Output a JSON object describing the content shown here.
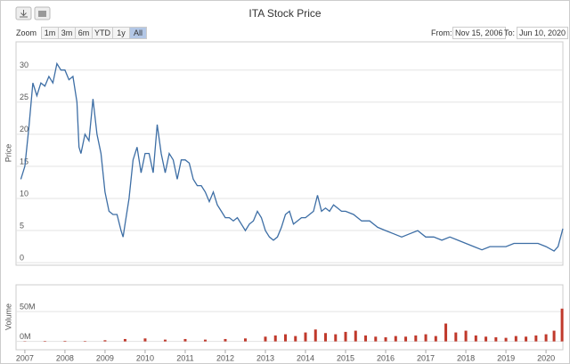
{
  "toolbar": {
    "zoom_label": "Zoom",
    "buttons": [
      "1m",
      "3m",
      "6m",
      "YTD",
      "1y",
      "All"
    ],
    "from_label": "From:",
    "from": "Nov 15, 2006",
    "to_label": "To:",
    "to": "Jun 10, 2020"
  },
  "chart_data": [
    {
      "type": "line",
      "title": "ITA Stock Price",
      "y_label": "Price",
      "x": [
        2006.9,
        2007.0,
        2007.1,
        2007.2,
        2007.3,
        2007.4,
        2007.5,
        2007.6,
        2007.7,
        2007.8,
        2007.9,
        2008.0,
        2008.1,
        2008.2,
        2008.3,
        2008.35,
        2008.4,
        2008.5,
        2008.6,
        2008.7,
        2008.8,
        2008.9,
        2009.0,
        2009.1,
        2009.2,
        2009.3,
        2009.4,
        2009.45,
        2009.5,
        2009.6,
        2009.7,
        2009.8,
        2009.9,
        2010.0,
        2010.1,
        2010.2,
        2010.3,
        2010.4,
        2010.5,
        2010.6,
        2010.7,
        2010.8,
        2010.9,
        2011.0,
        2011.1,
        2011.2,
        2011.3,
        2011.4,
        2011.5,
        2011.6,
        2011.7,
        2011.8,
        2011.9,
        2012.0,
        2012.1,
        2012.2,
        2012.3,
        2012.4,
        2012.5,
        2012.6,
        2012.7,
        2012.8,
        2012.9,
        2013.0,
        2013.1,
        2013.2,
        2013.3,
        2013.4,
        2013.5,
        2013.6,
        2013.7,
        2013.8,
        2013.9,
        2014.0,
        2014.1,
        2014.2,
        2014.3,
        2014.4,
        2014.5,
        2014.6,
        2014.7,
        2014.8,
        2014.9,
        2015.0,
        2015.2,
        2015.4,
        2015.6,
        2015.8,
        2016.0,
        2016.2,
        2016.4,
        2016.6,
        2016.8,
        2017.0,
        2017.2,
        2017.4,
        2017.6,
        2017.8,
        2018.0,
        2018.2,
        2018.4,
        2018.6,
        2018.8,
        2019.0,
        2019.2,
        2019.4,
        2019.6,
        2019.8,
        2020.0,
        2020.2,
        2020.3,
        2020.42
      ],
      "series": [
        {
          "name": "ITA",
          "color": "#3d6ea5",
          "values": [
            13,
            15,
            21,
            28,
            26,
            28,
            27.5,
            29,
            28,
            31,
            30,
            30,
            28.5,
            29,
            25,
            18,
            17,
            20,
            19,
            25.5,
            20,
            17,
            11,
            8,
            7.5,
            7.5,
            5,
            4,
            6,
            10,
            16,
            18,
            14,
            17,
            17,
            14,
            21.5,
            17,
            14,
            17,
            16,
            13,
            16,
            16,
            15.5,
            13,
            12,
            12,
            11,
            9.5,
            11,
            9,
            8,
            7,
            7,
            6.5,
            7,
            6,
            5,
            6,
            6.5,
            8,
            7,
            5,
            4,
            3.5,
            4,
            5.5,
            7.5,
            8,
            6,
            6.5,
            7,
            7,
            7.5,
            8,
            10.5,
            8,
            8.5,
            8,
            9,
            8.5,
            8,
            8,
            7.5,
            6.5,
            6.5,
            5.5,
            5,
            4.5,
            4,
            4.5,
            5,
            4,
            4,
            3.5,
            4,
            3.5,
            3,
            2.5,
            2,
            2.5,
            2.5,
            2.5,
            3,
            3,
            3,
            3,
            2.5,
            1.8,
            2.5,
            5.3
          ]
        }
      ],
      "xlim": [
        2006.78,
        2020.42
      ],
      "ylim": [
        -0.4,
        34.4
      ],
      "yticks": [
        0,
        5,
        10,
        15,
        20,
        25,
        30
      ]
    },
    {
      "type": "bar",
      "y_label": "Volume",
      "x": [
        2007.0,
        2007.5,
        2008.0,
        2008.5,
        2009.0,
        2009.5,
        2010.0,
        2010.5,
        2011.0,
        2011.5,
        2012.0,
        2012.5,
        2013.0,
        2013.25,
        2013.5,
        2013.75,
        2014.0,
        2014.25,
        2014.5,
        2014.75,
        2015.0,
        2015.25,
        2015.5,
        2015.75,
        2016.0,
        2016.25,
        2016.5,
        2016.75,
        2017.0,
        2017.25,
        2017.5,
        2017.75,
        2018.0,
        2018.25,
        2018.5,
        2018.75,
        2019.0,
        2019.25,
        2019.5,
        2019.75,
        2020.0,
        2020.2,
        2020.4
      ],
      "series": [
        {
          "name": "Volume",
          "color": "#c0392b",
          "values": [
            500000,
            800000,
            1000000,
            800000,
            2000000,
            4000000,
            5000000,
            3000000,
            4000000,
            3000000,
            4000000,
            5000000,
            8000000,
            10000000,
            12000000,
            9000000,
            15000000,
            20000000,
            14000000,
            12000000,
            16000000,
            18000000,
            10000000,
            8000000,
            7000000,
            9000000,
            8000000,
            10000000,
            12000000,
            9000000,
            30000000,
            15000000,
            18000000,
            10000000,
            8000000,
            7000000,
            6000000,
            9000000,
            8000000,
            10000000,
            12000000,
            18000000,
            55000000
          ]
        }
      ],
      "xlim": [
        2006.78,
        2020.42
      ],
      "ylim": [
        -14000000,
        95000000
      ],
      "yticks": [
        {
          "value": 0,
          "label": "0M"
        },
        {
          "value": 50000000,
          "label": "50M"
        }
      ],
      "xticks": [
        2007,
        2008,
        2009,
        2010,
        2011,
        2012,
        2013,
        2014,
        2015,
        2016,
        2017,
        2018,
        2019,
        2020
      ]
    }
  ]
}
